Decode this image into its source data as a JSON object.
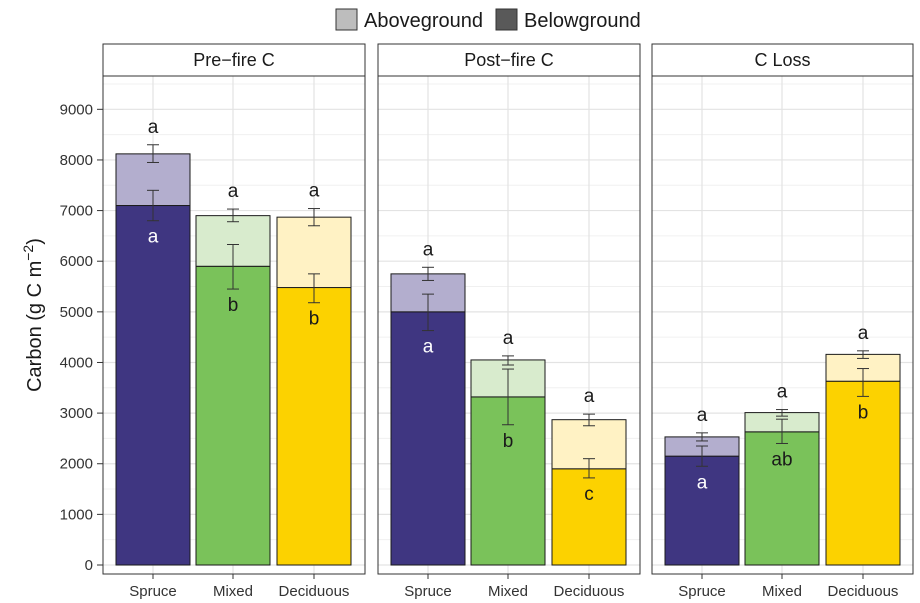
{
  "legend": {
    "items": [
      {
        "label": "Aboveground",
        "color": "#bdbdbd"
      },
      {
        "label": "Belowground",
        "color": "#595959"
      }
    ]
  },
  "y_axis": {
    "label_main": "Carbon (g C m",
    "label_sup": "−2",
    "label_close": ")"
  },
  "chart_data": {
    "type": "bar",
    "stacked": true,
    "categories": [
      "Spruce",
      "Mixed",
      "Deciduous"
    ],
    "ylim": [
      0,
      9500
    ],
    "yticks": [
      0,
      1000,
      2000,
      3000,
      4000,
      5000,
      6000,
      7000,
      8000,
      9000
    ],
    "grid": true,
    "legend_position": "top",
    "colors": {
      "Spruce": {
        "below": "#3f3681",
        "above": "#b3aece"
      },
      "Mixed": {
        "below": "#7ac25a",
        "above": "#d8ebcd"
      },
      "Deciduous": {
        "below": "#fcd200",
        "above": "#fff2c4"
      }
    },
    "panels": [
      {
        "title": "Pre−fire C",
        "bars": [
          {
            "category": "Spruce",
            "belowground": 7100,
            "total": 8120,
            "total_err": [
              7950,
              8300
            ],
            "below_err": [
              6800,
              7400
            ],
            "above_letter": "a",
            "below_letter": "a"
          },
          {
            "category": "Mixed",
            "belowground": 5900,
            "total": 6900,
            "total_err": [
              6780,
              7030
            ],
            "below_err": [
              5450,
              6330
            ],
            "above_letter": "a",
            "below_letter": "b"
          },
          {
            "category": "Deciduous",
            "belowground": 5480,
            "total": 6870,
            "total_err": [
              6700,
              7040
            ],
            "below_err": [
              5180,
              5750
            ],
            "above_letter": "a",
            "below_letter": "b"
          }
        ]
      },
      {
        "title": "Post−fire C",
        "bars": [
          {
            "category": "Spruce",
            "belowground": 5000,
            "total": 5750,
            "total_err": [
              5620,
              5880
            ],
            "below_err": [
              4630,
              5350
            ],
            "above_letter": "a",
            "below_letter": "a"
          },
          {
            "category": "Mixed",
            "belowground": 3320,
            "total": 4050,
            "total_err": [
              3950,
              4130
            ],
            "below_err": [
              2770,
              3870
            ],
            "above_letter": "a",
            "below_letter": "b"
          },
          {
            "category": "Deciduous",
            "belowground": 1900,
            "total": 2870,
            "total_err": [
              2750,
              2980
            ],
            "below_err": [
              1720,
              2100
            ],
            "above_letter": "a",
            "below_letter": "c"
          }
        ]
      },
      {
        "title": "C Loss",
        "bars": [
          {
            "category": "Spruce",
            "belowground": 2150,
            "total": 2530,
            "total_err": [
              2450,
              2610
            ],
            "below_err": [
              1950,
              2350
            ],
            "above_letter": "a",
            "below_letter": "a"
          },
          {
            "category": "Mixed",
            "belowground": 2630,
            "total": 3010,
            "total_err": [
              2940,
              3070
            ],
            "below_err": [
              2400,
              2880
            ],
            "above_letter": "a",
            "below_letter": "ab"
          },
          {
            "category": "Deciduous",
            "belowground": 3630,
            "total": 4160,
            "total_err": [
              4080,
              4230
            ],
            "below_err": [
              3330,
              3880
            ],
            "above_letter": "a",
            "below_letter": "b"
          }
        ]
      }
    ]
  }
}
